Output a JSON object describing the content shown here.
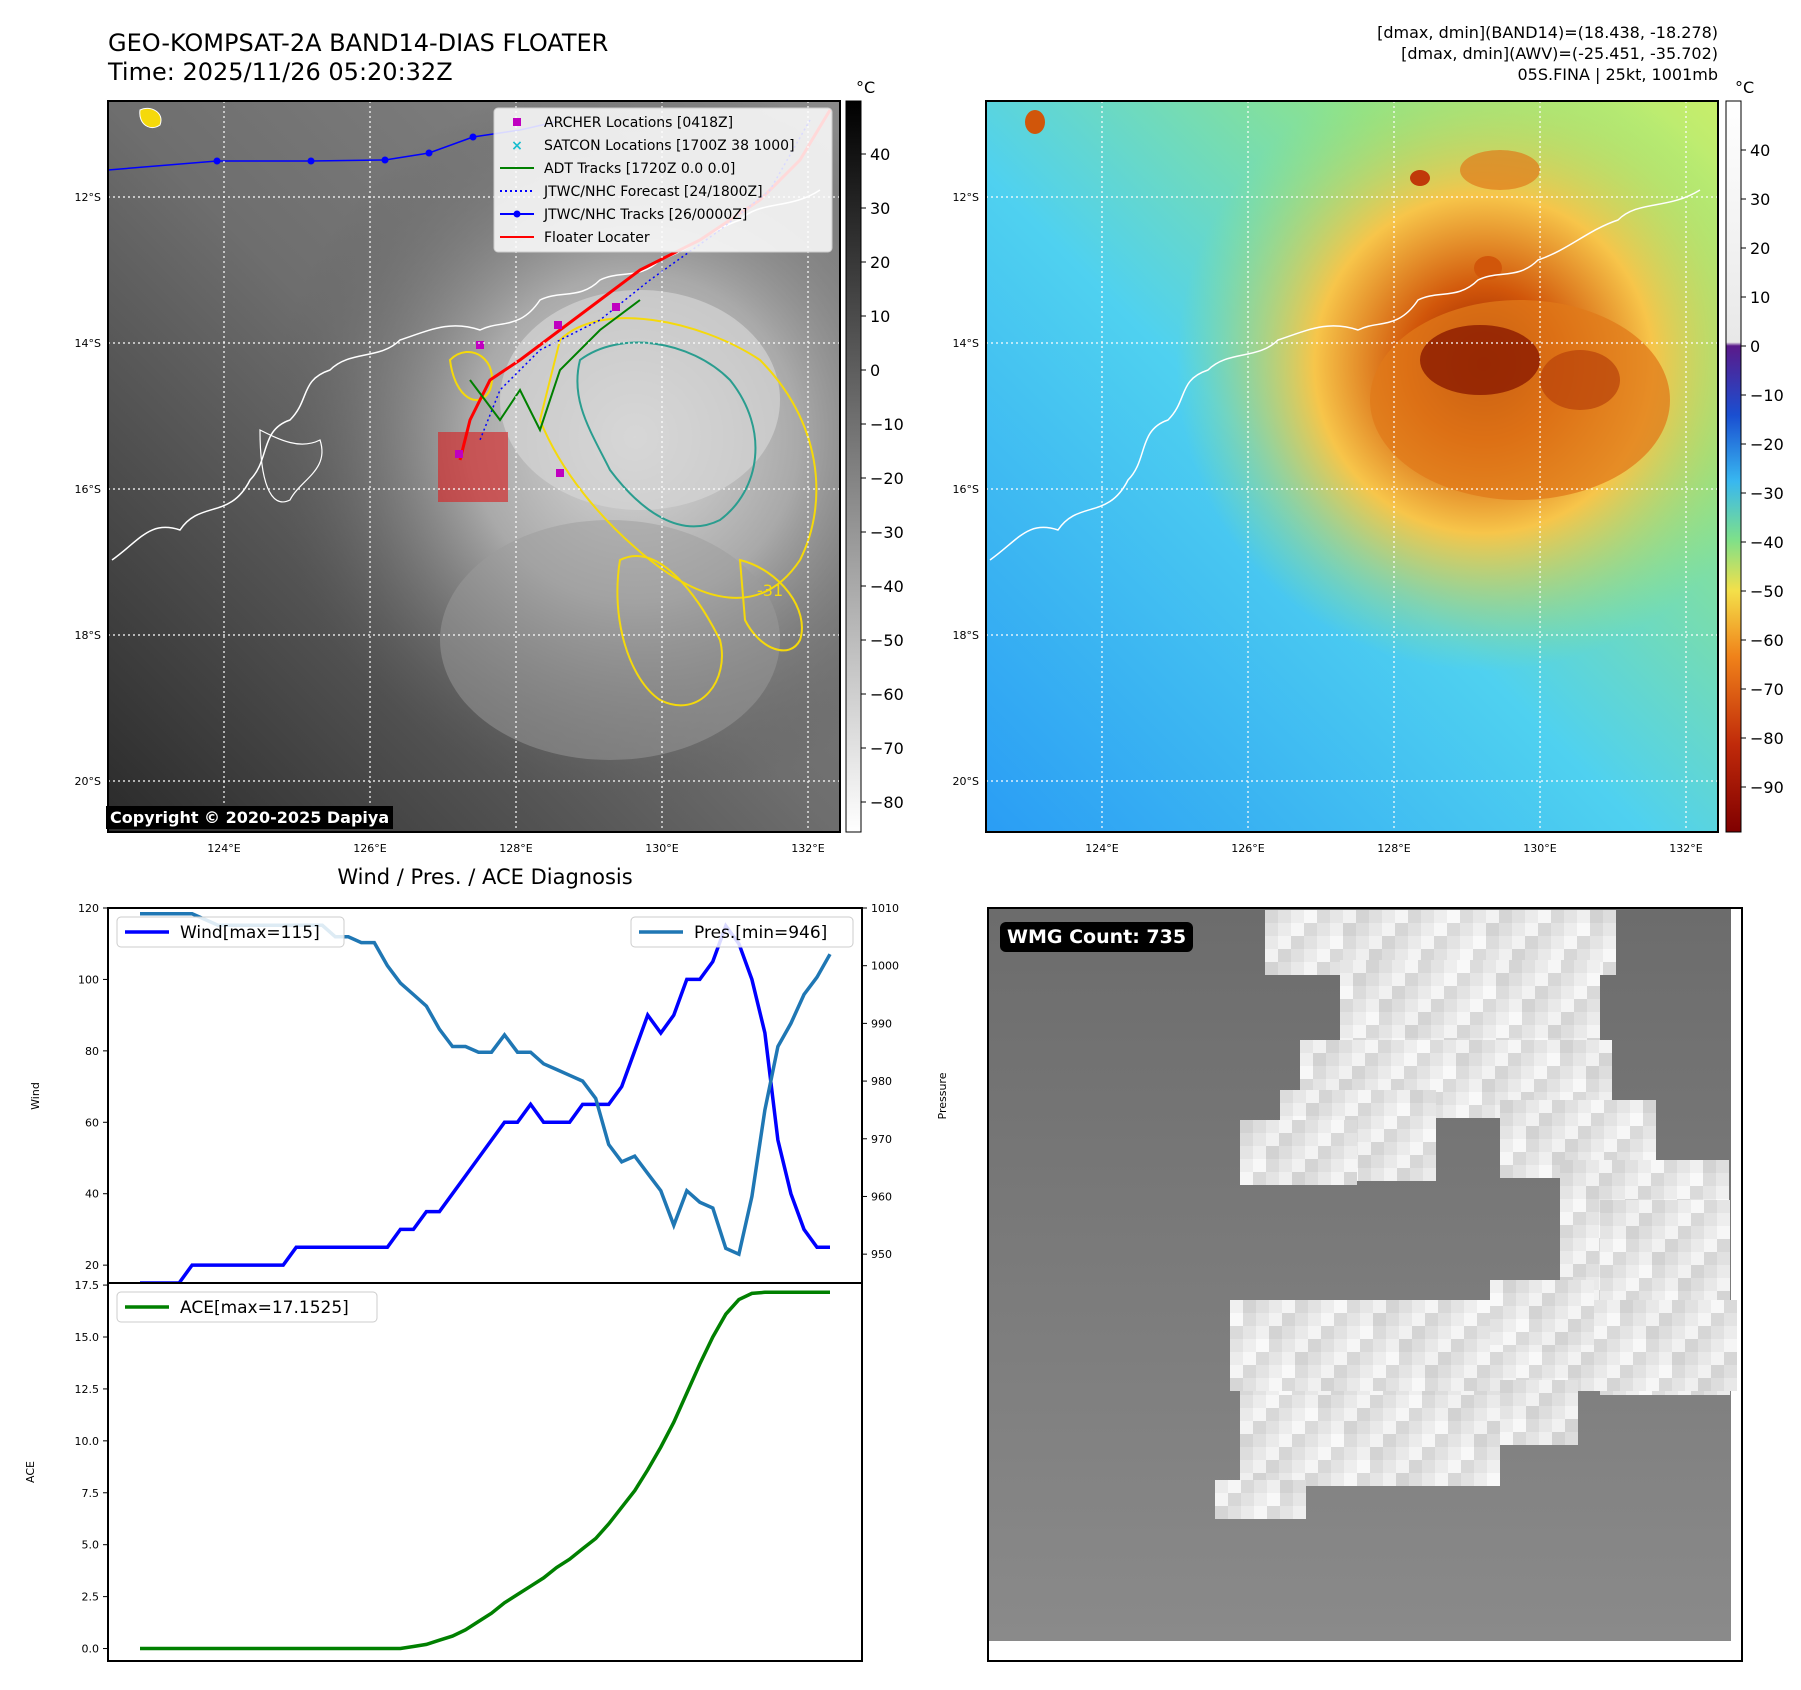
{
  "header": {
    "title_line1": "GEO-KOMPSAT-2A BAND14-DIAS FLOATER",
    "title_line2": "Time: 2025/11/26 05:20:32Z",
    "info_line1": "[dmax, dmin](BAND14)=(18.438, -18.278)",
    "info_line2": "[dmax, dmin](AWV)=(-25.451, -35.702)",
    "info_line3": "05S.FINA | 25kt, 1001mb"
  },
  "maps": {
    "lat_labels": [
      "12°S",
      "14°S",
      "16°S",
      "18°S",
      "20°S"
    ],
    "lon_labels": [
      "124°E",
      "126°E",
      "128°E",
      "130°E",
      "132°E"
    ],
    "copyright": "Copyright © 2020-2025 Dapiya",
    "contour_label": "-31",
    "legend": [
      {
        "label": "ARCHER Locations [0418Z]",
        "color": "#c000c0",
        "kind": "square"
      },
      {
        "label": "SATCON Locations [1700Z 38 1000]",
        "color": "#17becf",
        "kind": "x"
      },
      {
        "label": "ADT Tracks [1720Z 0.0 0.0]",
        "color": "#008000",
        "kind": "line"
      },
      {
        "label": "JTWC/NHC Forecast [24/1800Z]",
        "color": "#0000ff",
        "kind": "dotted"
      },
      {
        "label": "JTWC/NHC Tracks [26/0000Z]",
        "color": "#0000ff",
        "kind": "line-marker"
      },
      {
        "label": "Floater Locater",
        "color": "#ff0000",
        "kind": "line"
      }
    ],
    "colorbar_left": {
      "unit": "°C",
      "ticks": [
        "40",
        "30",
        "20",
        "10",
        "0",
        "−10",
        "−20",
        "−30",
        "−40",
        "−50",
        "−60",
        "−70",
        "−80"
      ]
    },
    "colorbar_right": {
      "unit": "°C",
      "ticks": [
        "40",
        "30",
        "20",
        "10",
        "0",
        "−10",
        "−20",
        "−30",
        "−40",
        "−50",
        "−60",
        "−70",
        "−80",
        "−90"
      ]
    }
  },
  "wmg": {
    "label": "WMG Count: 735"
  },
  "chart_data": [
    {
      "type": "line",
      "title": "Wind / Pres. / ACE Diagnosis",
      "xlabel": "",
      "ylabel": "Wind",
      "ylabel_right": "Pressure",
      "ylim": [
        15,
        120
      ],
      "ylim_right": [
        945,
        1010
      ],
      "y_ticks": [
        "20",
        "40",
        "60",
        "80",
        "100",
        "120"
      ],
      "y_ticks_right": [
        "950",
        "960",
        "970",
        "980",
        "990",
        "1000",
        "1010"
      ],
      "series": [
        {
          "name": "Wind[max=115]",
          "axis": "left",
          "color": "#0000ff",
          "values": [
            15,
            15,
            15,
            15,
            20,
            20,
            20,
            20,
            20,
            20,
            20,
            20,
            25,
            25,
            25,
            25,
            25,
            25,
            25,
            25,
            30,
            30,
            35,
            35,
            40,
            45,
            50,
            55,
            60,
            60,
            65,
            60,
            60,
            60,
            65,
            65,
            65,
            70,
            80,
            90,
            85,
            90,
            100,
            100,
            105,
            115,
            110,
            100,
            85,
            55,
            40,
            30,
            25,
            25
          ]
        },
        {
          "name": "Pres.[min=946]",
          "axis": "right",
          "color": "#1f77b4",
          "values": [
            1009,
            1009,
            1009,
            1009,
            1009,
            1008,
            1007,
            1007,
            1007,
            1007,
            1007,
            1007,
            1007,
            1007,
            1007,
            1005,
            1005,
            1004,
            1004,
            1000,
            997,
            995,
            993,
            989,
            986,
            986,
            985,
            985,
            988,
            985,
            985,
            983,
            982,
            981,
            980,
            977,
            969,
            966,
            967,
            964,
            961,
            955,
            961,
            959,
            958,
            951,
            950,
            960,
            975,
            986,
            990,
            995,
            998,
            1002
          ]
        }
      ]
    },
    {
      "type": "line",
      "xlabel": "",
      "ylabel": "ACE",
      "ylim": [
        -0.6,
        17.6
      ],
      "y_ticks": [
        "0.0",
        "2.5",
        "5.0",
        "7.5",
        "10.0",
        "12.5",
        "15.0",
        "17.5"
      ],
      "series": [
        {
          "name": "ACE[max=17.1525]",
          "color": "#008000",
          "values": [
            0,
            0,
            0,
            0,
            0,
            0,
            0,
            0,
            0,
            0,
            0,
            0,
            0,
            0,
            0,
            0,
            0,
            0,
            0,
            0,
            0,
            0.1,
            0.2,
            0.4,
            0.6,
            0.9,
            1.3,
            1.7,
            2.2,
            2.6,
            3.0,
            3.4,
            3.9,
            4.3,
            4.8,
            5.3,
            6.0,
            6.8,
            7.6,
            8.6,
            9.7,
            10.9,
            12.3,
            13.7,
            15.0,
            16.1,
            16.8,
            17.1,
            17.15,
            17.15,
            17.15,
            17.15,
            17.15,
            17.15
          ]
        }
      ]
    }
  ]
}
